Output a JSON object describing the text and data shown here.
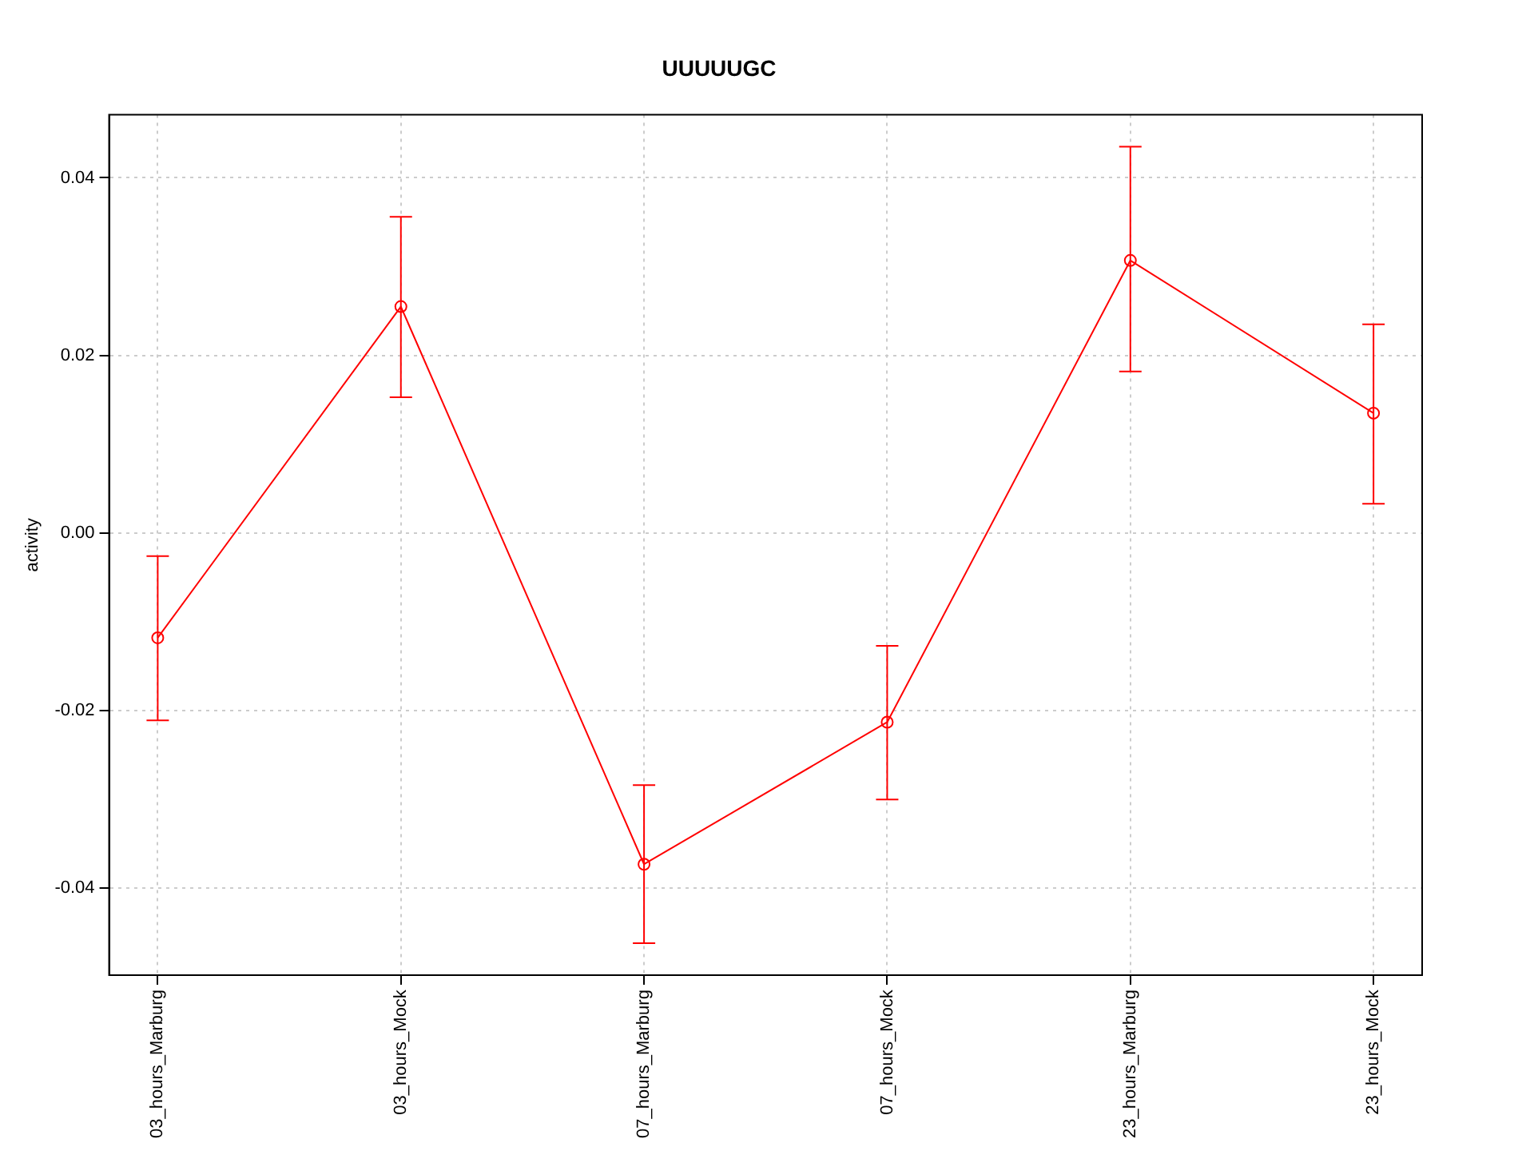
{
  "chart_data": {
    "type": "line",
    "title": "UUUUUGC",
    "ylabel": "activity",
    "categories": [
      "03_hours_Marburg",
      "03_hours_Mock",
      "07_hours_Marburg",
      "07_hours_Mock",
      "23_hours_Marburg",
      "23_hours_Mock"
    ],
    "series": [
      {
        "color": "#ff0000",
        "values": [
          -0.0118,
          0.0255,
          -0.0373,
          -0.0213,
          0.0307,
          0.0135
        ],
        "errors": [
          [
            -0.0211,
            -0.0026
          ],
          [
            0.0153,
            0.0356
          ],
          [
            -0.0462,
            -0.0284
          ],
          [
            -0.03,
            -0.0127
          ],
          [
            0.0182,
            0.0435
          ],
          [
            0.0033,
            0.0235
          ]
        ]
      }
    ],
    "ylim": [
      -0.0498,
      0.0471
    ],
    "yticks": [
      -0.04,
      -0.02,
      {
        "value": 0,
        "label": "0.00"
      },
      0.02,
      0.04
    ],
    "grid": true,
    "marker": "circle",
    "line_style": "solid",
    "legend": false
  }
}
